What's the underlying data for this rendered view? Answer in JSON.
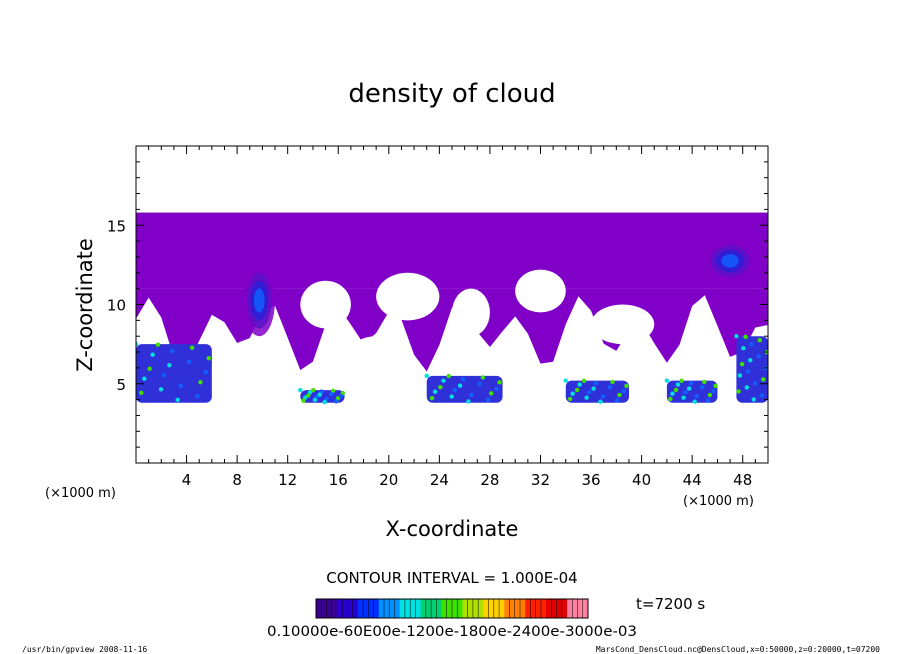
{
  "chart_data": {
    "type": "heatmap",
    "title": "density of cloud",
    "xlabel": "X-coordinate",
    "ylabel": "Z-coordinate",
    "x_unit_left": "(×1000 m)",
    "x_unit_right": "(×1000 m)",
    "xlim": [
      0,
      50
    ],
    "ylim": [
      0,
      20
    ],
    "x_ticks": [
      4,
      8,
      12,
      16,
      20,
      24,
      28,
      32,
      36,
      40,
      44,
      48
    ],
    "y_ticks": [
      5,
      10,
      15
    ],
    "contour_interval_text": "CONTOUR INTERVAL = 1.000E-04",
    "time_text": "t=7200 s",
    "colorbar_labels_text": "0.10000e-60E00e-1200e-1800e-2400e-3000e-03",
    "colorbar_colors": [
      "#3c0090",
      "#2a00d0",
      "#0030ff",
      "#0090ff",
      "#00e0e0",
      "#00d070",
      "#40e000",
      "#b0e000",
      "#ffd000",
      "#ff8000",
      "#ff2000",
      "#e00000",
      "#ff80a0"
    ],
    "regions": [
      {
        "kind": "upper-cloud-layer",
        "x": [
          0,
          50
        ],
        "z": [
          11,
          15.8
        ],
        "level": 1
      },
      {
        "kind": "core",
        "x": [
          8.5,
          11
        ],
        "z": [
          8,
          12.5
        ],
        "level": 3
      },
      {
        "kind": "core",
        "x": [
          45,
          49
        ],
        "z": [
          11.5,
          14
        ],
        "level": 2
      },
      {
        "kind": "low-dense",
        "x": [
          0,
          6
        ],
        "z": [
          3.8,
          7.5
        ],
        "level": 5
      },
      {
        "kind": "low-dense",
        "x": [
          13,
          16.5
        ],
        "z": [
          3.8,
          4.6
        ],
        "level": 4
      },
      {
        "kind": "low-dense",
        "x": [
          23,
          29
        ],
        "z": [
          3.8,
          5.5
        ],
        "level": 5
      },
      {
        "kind": "low-dense",
        "x": [
          34,
          39
        ],
        "z": [
          3.8,
          5.2
        ],
        "level": 4
      },
      {
        "kind": "low-dense",
        "x": [
          42,
          46
        ],
        "z": [
          3.8,
          5.2
        ],
        "level": 4
      },
      {
        "kind": "low-dense",
        "x": [
          47.5,
          50
        ],
        "z": [
          3.8,
          8
        ],
        "level": 5
      }
    ]
  },
  "footer": {
    "program": "/usr/bin/gpview   2008-11-16",
    "file_info": "MarsCond_DensCloud.nc@DensCloud,x=0:50000,z=0:20000,t=07200"
  },
  "colors": {
    "background": "#ffffff",
    "cloud_base": "#8000c8",
    "axis": "#000000"
  }
}
